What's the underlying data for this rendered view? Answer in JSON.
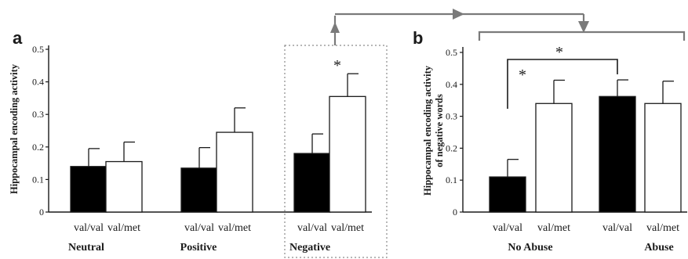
{
  "chart_data": [
    {
      "panel": "a",
      "type": "bar",
      "ylabel": "Hippocampal encoding activity",
      "ylim": [
        0,
        0.5
      ],
      "yticks": [
        "0",
        "0.1",
        "0.2",
        "0.3",
        "0.4",
        "0.5"
      ],
      "groups": [
        {
          "name": "Neutral",
          "bars": [
            {
              "label": "val/val",
              "value": 0.14,
              "error": 0.055,
              "fill": "black"
            },
            {
              "label": "val/met",
              "value": 0.155,
              "error": 0.06,
              "fill": "white"
            }
          ]
        },
        {
          "name": "Positive",
          "bars": [
            {
              "label": "val/val",
              "value": 0.135,
              "error": 0.063,
              "fill": "black"
            },
            {
              "label": "val/met",
              "value": 0.245,
              "error": 0.075,
              "fill": "white"
            }
          ]
        },
        {
          "name": "Negative",
          "bars": [
            {
              "label": "val/val",
              "value": 0.18,
              "error": 0.06,
              "fill": "black"
            },
            {
              "label": "val/met",
              "value": 0.355,
              "error": 0.07,
              "fill": "white"
            }
          ]
        }
      ],
      "annotations": [
        "*"
      ]
    },
    {
      "panel": "b",
      "type": "bar",
      "ylabel": "Hippocampal encoding activity of negative words",
      "ylim": [
        0,
        0.5
      ],
      "yticks": [
        "0",
        "0.1",
        "0.2",
        "0.3",
        "0.4",
        "0.5"
      ],
      "groups": [
        {
          "name": "No Abuse",
          "bars": [
            {
              "label": "val/val",
              "value": 0.11,
              "error": 0.055,
              "fill": "black"
            },
            {
              "label": "val/met",
              "value": 0.34,
              "error": 0.073,
              "fill": "white"
            }
          ]
        },
        {
          "name": "Abuse",
          "bars": [
            {
              "label": "val/val",
              "value": 0.362,
              "error": 0.052,
              "fill": "black"
            },
            {
              "label": "val/met",
              "value": 0.34,
              "error": 0.07,
              "fill": "white"
            }
          ]
        }
      ],
      "annotations": [
        "*",
        "*"
      ]
    }
  ],
  "colors": {
    "black_bar": "#000000",
    "white_bar": "#ffffff",
    "connector": "#7a7a7a",
    "dotted_box": "#8a8a8a"
  }
}
